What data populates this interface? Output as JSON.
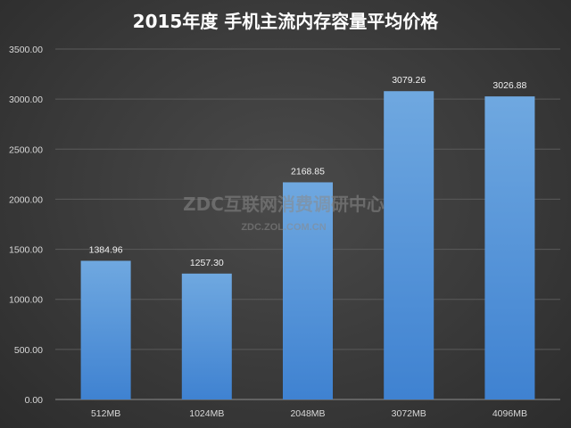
{
  "chart_data": {
    "type": "bar",
    "title": "2015年度 手机主流内存容量平均价格",
    "categories": [
      "512MB",
      "1024MB",
      "2048MB",
      "3072MB",
      "4096MB"
    ],
    "values": [
      1384.96,
      1257.3,
      2168.85,
      3079.26,
      3026.88
    ],
    "data_labels": [
      "1384.96",
      "1257.30",
      "2168.85",
      "3079.26",
      "3026.88"
    ],
    "ylim": [
      0,
      3500
    ],
    "yticks": [
      "0.00",
      "500.00",
      "1000.00",
      "1500.00",
      "2000.00",
      "2500.00",
      "3000.00",
      "3500.00"
    ],
    "grid": true,
    "legend": "none",
    "bar_color_top": "#6fa8e0",
    "bar_color_bottom": "#3f82d1"
  },
  "watermark": {
    "main": "ZDC互联网消费调研中心",
    "sub": "ZDC.ZOL.COM.CN"
  }
}
